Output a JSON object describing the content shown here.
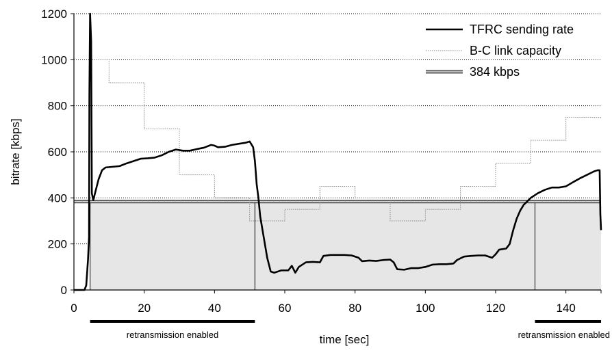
{
  "chart_data": {
    "type": "line",
    "xlabel": "time [sec]",
    "ylabel": "bitrate [kbps]",
    "xlim": [
      0,
      150
    ],
    "ylim": [
      0,
      1200
    ],
    "xticks": [
      0,
      20,
      40,
      60,
      80,
      100,
      120,
      140
    ],
    "yticks": [
      0,
      200,
      400,
      600,
      800,
      1000,
      1200
    ],
    "grid": "horizontal",
    "legend": "top-right",
    "shaded_region": {
      "y_from": 0,
      "y_to": 384,
      "color": "#e6e6e6",
      "boundaries_x": [
        4.6,
        51.5,
        131.2
      ]
    },
    "series": [
      {
        "name": "TFRC sending rate",
        "style": "solid-thick",
        "color": "#000000",
        "points": [
          [
            0,
            0
          ],
          [
            3,
            0
          ],
          [
            3.5,
            20
          ],
          [
            4,
            130
          ],
          [
            4.3,
            230
          ],
          [
            4.4,
            850
          ],
          [
            4.6,
            1200
          ],
          [
            4.9,
            1080
          ],
          [
            5.1,
            420
          ],
          [
            5.5,
            390
          ],
          [
            6,
            420
          ],
          [
            7,
            480
          ],
          [
            8,
            520
          ],
          [
            9,
            532
          ],
          [
            11,
            535
          ],
          [
            13,
            538
          ],
          [
            15,
            550
          ],
          [
            17,
            560
          ],
          [
            19,
            570
          ],
          [
            21,
            572
          ],
          [
            23,
            575
          ],
          [
            25,
            585
          ],
          [
            27,
            600
          ],
          [
            29,
            610
          ],
          [
            31,
            605
          ],
          [
            33,
            605
          ],
          [
            35,
            612
          ],
          [
            37,
            618
          ],
          [
            39,
            630
          ],
          [
            40,
            627
          ],
          [
            41,
            620
          ],
          [
            43,
            622
          ],
          [
            45,
            630
          ],
          [
            47,
            635
          ],
          [
            49,
            640
          ],
          [
            50,
            645
          ],
          [
            51,
            620
          ],
          [
            51.5,
            560
          ],
          [
            52,
            460
          ],
          [
            52.5,
            400
          ],
          [
            53,
            320
          ],
          [
            54,
            230
          ],
          [
            55,
            140
          ],
          [
            56,
            80
          ],
          [
            57,
            75
          ],
          [
            58,
            80
          ],
          [
            59,
            85
          ],
          [
            61,
            85
          ],
          [
            62,
            105
          ],
          [
            63,
            75
          ],
          [
            64,
            100
          ],
          [
            66,
            120
          ],
          [
            68,
            122
          ],
          [
            70,
            120
          ],
          [
            71,
            148
          ],
          [
            73,
            152
          ],
          [
            75,
            152
          ],
          [
            77,
            152
          ],
          [
            79,
            150
          ],
          [
            81,
            140
          ],
          [
            82,
            125
          ],
          [
            84,
            128
          ],
          [
            86,
            126
          ],
          [
            88,
            130
          ],
          [
            90,
            132
          ],
          [
            91,
            120
          ],
          [
            92,
            90
          ],
          [
            94,
            88
          ],
          [
            96,
            95
          ],
          [
            98,
            95
          ],
          [
            100,
            100
          ],
          [
            102,
            110
          ],
          [
            104,
            112
          ],
          [
            106,
            112
          ],
          [
            108,
            115
          ],
          [
            109,
            130
          ],
          [
            111,
            145
          ],
          [
            113,
            148
          ],
          [
            115,
            150
          ],
          [
            117,
            150
          ],
          [
            119,
            140
          ],
          [
            120,
            155
          ],
          [
            121,
            175
          ],
          [
            123,
            180
          ],
          [
            124,
            200
          ],
          [
            125,
            260
          ],
          [
            126,
            310
          ],
          [
            127,
            345
          ],
          [
            128,
            370
          ],
          [
            129,
            385
          ],
          [
            130,
            400
          ],
          [
            132,
            420
          ],
          [
            134,
            435
          ],
          [
            136,
            445
          ],
          [
            138,
            445
          ],
          [
            140,
            450
          ],
          [
            142,
            468
          ],
          [
            144,
            485
          ],
          [
            146,
            500
          ],
          [
            148,
            515
          ],
          [
            149,
            520
          ],
          [
            149.6,
            520
          ],
          [
            149.8,
            330
          ],
          [
            150,
            260
          ]
        ]
      },
      {
        "name": "B-C link capacity",
        "style": "dotted-thin",
        "color": "#888888",
        "points": [
          [
            4.6,
            1000
          ],
          [
            10,
            1000
          ],
          [
            10,
            900
          ],
          [
            20,
            900
          ],
          [
            20,
            700
          ],
          [
            30,
            700
          ],
          [
            30,
            500
          ],
          [
            40,
            500
          ],
          [
            40,
            400
          ],
          [
            50,
            400
          ],
          [
            50,
            300
          ],
          [
            60,
            300
          ],
          [
            60,
            350
          ],
          [
            70,
            350
          ],
          [
            70,
            450
          ],
          [
            80,
            450
          ],
          [
            80,
            400
          ],
          [
            90,
            400
          ],
          [
            90,
            300
          ],
          [
            100,
            300
          ],
          [
            100,
            350
          ],
          [
            110,
            350
          ],
          [
            110,
            450
          ],
          [
            120,
            450
          ],
          [
            120,
            550
          ],
          [
            130,
            550
          ],
          [
            130,
            650
          ],
          [
            140,
            650
          ],
          [
            140,
            750
          ],
          [
            150,
            750
          ]
        ]
      },
      {
        "name": "384 kbps",
        "style": "double-line",
        "color": "#777777",
        "points": [
          [
            0,
            384
          ],
          [
            150,
            384
          ]
        ]
      }
    ],
    "annotations": [
      {
        "text": "retransmission enabled",
        "x_from": 4.6,
        "x_to": 51.5
      },
      {
        "text": "retransmission enabled",
        "x_from": 131.2,
        "x_to": 150
      }
    ]
  }
}
